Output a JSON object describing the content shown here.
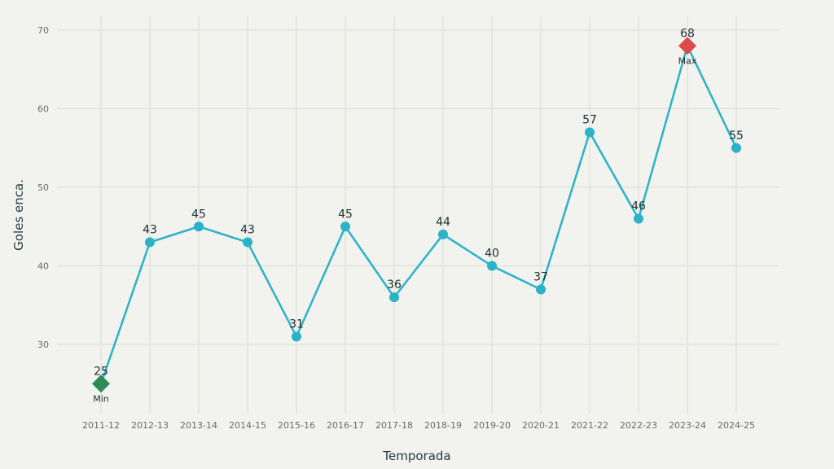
{
  "chart_data": {
    "type": "line",
    "title": "",
    "xlabel": "Temporada",
    "ylabel": "Goles enca.",
    "categories": [
      "2011-12",
      "2012-13",
      "2013-14",
      "2014-15",
      "2015-16",
      "2016-17",
      "2017-18",
      "2018-19",
      "2019-20",
      "2020-21",
      "2021-22",
      "2022-23",
      "2023-24",
      "2024-25"
    ],
    "series": [
      {
        "name": "Goles enca.",
        "values": [
          25,
          43,
          45,
          43,
          31,
          45,
          36,
          44,
          40,
          37,
          57,
          46,
          68,
          55
        ],
        "color": "#2ab3c8"
      }
    ],
    "yticks": [
      30,
      40,
      50,
      60,
      70
    ],
    "ylim": [
      21,
      71
    ],
    "grid": true,
    "annotations": [
      {
        "label": "Min",
        "index": 0,
        "value": 25,
        "color": "#2e8a57",
        "marker": "diamond"
      },
      {
        "label": "Max",
        "index": 12,
        "value": 68,
        "color": "#dc4a4a",
        "marker": "diamond"
      }
    ]
  }
}
